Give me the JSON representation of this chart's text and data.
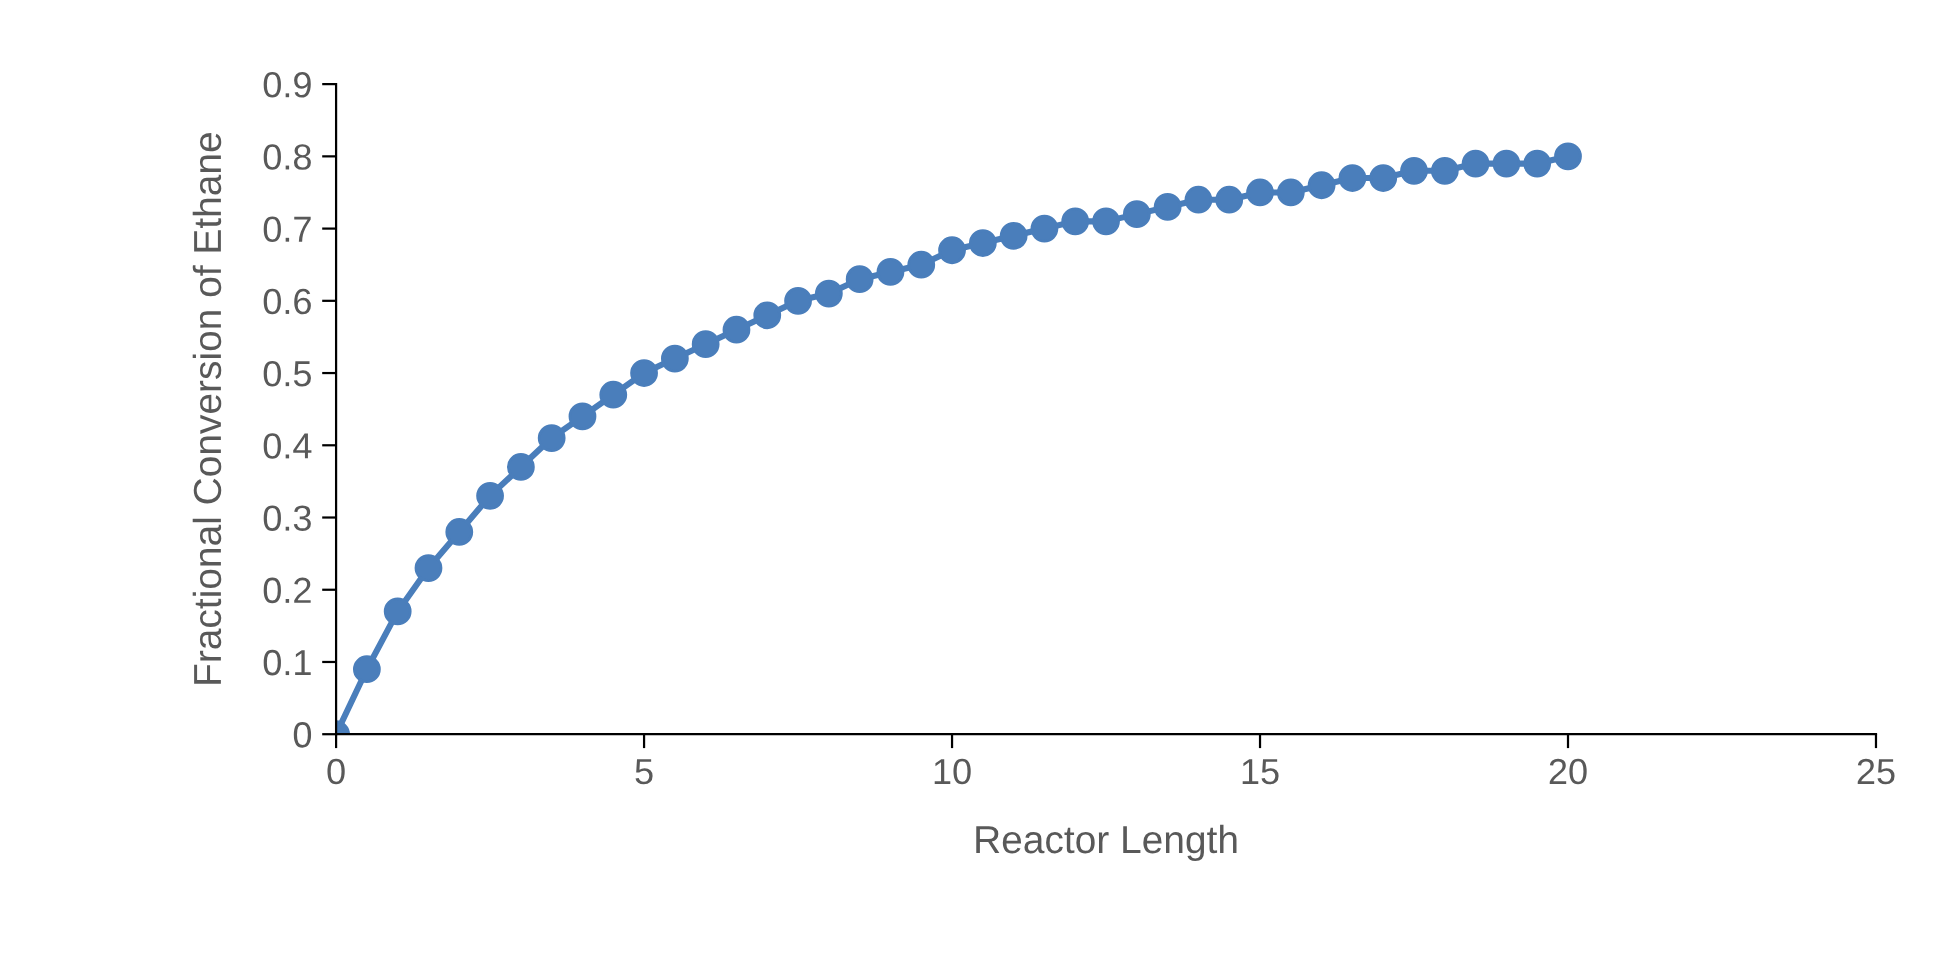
{
  "chart_data": {
    "type": "line",
    "xlabel": "Reactor Length",
    "ylabel": "Fractional Conversion of Ethane",
    "x": [
      0,
      0.5,
      1,
      1.5,
      2,
      2.5,
      3,
      3.5,
      4,
      4.5,
      5,
      5.5,
      6,
      6.5,
      7,
      7.5,
      8,
      8.5,
      9,
      9.5,
      10,
      10.5,
      11,
      11.5,
      12,
      12.5,
      13,
      13.5,
      14,
      14.5,
      15,
      15.5,
      16,
      16.5,
      17,
      17.5,
      18,
      18.5,
      19,
      19.5,
      20
    ],
    "series": [
      {
        "color": "#4a7ebb",
        "values": [
          0,
          0.09,
          0.17,
          0.23,
          0.28,
          0.33,
          0.37,
          0.41,
          0.44,
          0.47,
          0.5,
          0.52,
          0.54,
          0.56,
          0.58,
          0.6,
          0.61,
          0.63,
          0.64,
          0.65,
          0.67,
          0.68,
          0.69,
          0.7,
          0.71,
          0.71,
          0.72,
          0.73,
          0.74,
          0.74,
          0.75,
          0.75,
          0.76,
          0.77,
          0.77,
          0.78,
          0.78,
          0.79,
          0.79,
          0.79,
          0.8
        ]
      }
    ],
    "xlim": [
      0,
      25
    ],
    "xticks": [
      0,
      5,
      10,
      15,
      20,
      25
    ],
    "ylim": [
      0,
      0.9
    ],
    "yticks": [
      0,
      0.1,
      0.2,
      0.3,
      0.4,
      0.5,
      0.6,
      0.7,
      0.8,
      0.9
    ],
    "marker": "circle",
    "line_style": "solid",
    "grid": false,
    "legend": false
  }
}
